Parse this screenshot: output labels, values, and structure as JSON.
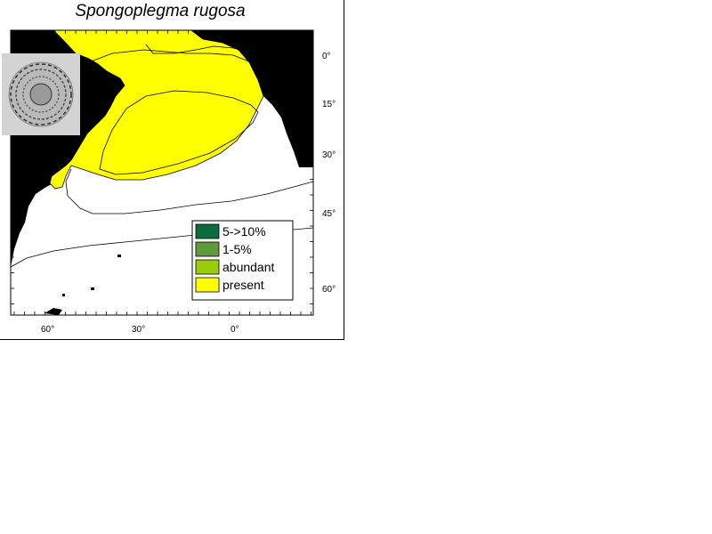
{
  "title": "Spongoplegma rugosa",
  "latitude_labels": [
    "0°",
    "15°",
    "30°",
    "45°",
    "60°"
  ],
  "longitude_labels": [
    "60°",
    "30°",
    "0°"
  ],
  "legend": [
    {
      "label": "5->10%",
      "color": "#0b6b3a"
    },
    {
      "label": "1-5%",
      "color": "#5f9a3c"
    },
    {
      "label": "abundant",
      "color": "#9acd07"
    },
    {
      "label": "present",
      "color": "#ffff00"
    }
  ],
  "colors": {
    "land": "#000000",
    "present": "#ffff00",
    "ocean": "#ffffff",
    "thumbnail_bg": "#d3d3d3"
  },
  "icons": {
    "thumbnail": "radiolarian-specimen-image"
  }
}
